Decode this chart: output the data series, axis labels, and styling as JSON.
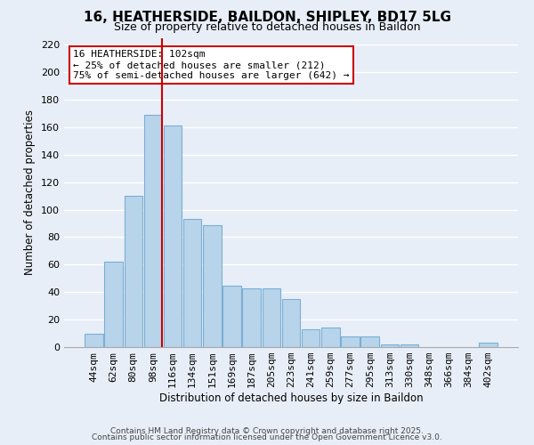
{
  "title": "16, HEATHERSIDE, BAILDON, SHIPLEY, BD17 5LG",
  "subtitle": "Size of property relative to detached houses in Baildon",
  "xlabel": "Distribution of detached houses by size in Baildon",
  "ylabel": "Number of detached properties",
  "categories": [
    "44sqm",
    "62sqm",
    "80sqm",
    "98sqm",
    "116sqm",
    "134sqm",
    "151sqm",
    "169sqm",
    "187sqm",
    "205sqm",
    "223sqm",
    "241sqm",
    "259sqm",
    "277sqm",
    "295sqm",
    "313sqm",
    "330sqm",
    "348sqm",
    "366sqm",
    "384sqm",
    "402sqm"
  ],
  "values": [
    10,
    62,
    110,
    169,
    161,
    93,
    89,
    45,
    43,
    43,
    35,
    13,
    14,
    8,
    8,
    2,
    2,
    0,
    0,
    0,
    3
  ],
  "bar_color": "#b8d4ea",
  "bar_edge_color": "#7aafd4",
  "vline_x_index": 3,
  "vline_color": "#cc0000",
  "annotation_title": "16 HEATHERSIDE: 102sqm",
  "annotation_line1": "← 25% of detached houses are smaller (212)",
  "annotation_line2": "75% of semi-detached houses are larger (642) →",
  "annotation_box_color": "#ffffff",
  "annotation_box_edge": "#cc0000",
  "ylim": [
    0,
    225
  ],
  "yticks": [
    0,
    20,
    40,
    60,
    80,
    100,
    120,
    140,
    160,
    180,
    200,
    220
  ],
  "footer_line1": "Contains HM Land Registry data © Crown copyright and database right 2025.",
  "footer_line2": "Contains public sector information licensed under the Open Government Licence v3.0.",
  "fig_bg_color": "#e8eef7",
  "plot_bg_color": "#e8eef7"
}
